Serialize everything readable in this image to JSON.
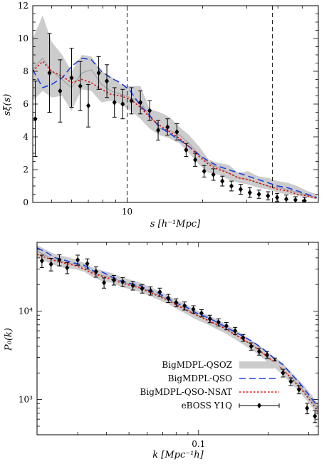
{
  "chart_data": [
    {
      "type": "line",
      "xlabel": "s [h⁻¹Mpc]",
      "ylabel": "sξ(s)",
      "xscale": "log",
      "xlim": [
        4.2,
        58
      ],
      "ylim": [
        0,
        12
      ],
      "xticks": [
        10
      ],
      "yticks": [
        0,
        2,
        4,
        6,
        8,
        10,
        12
      ],
      "vlines": [
        10,
        38
      ],
      "series": [
        {
          "name": "BigMDPL-QSOZ",
          "style": "band",
          "color": "#cccccc",
          "x": [
            4.2,
            4.6,
            5.0,
            5.5,
            6.0,
            6.6,
            7.2,
            7.9,
            8.6,
            9.4,
            10.3,
            11.3,
            12.3,
            13.5,
            14.8,
            16.2,
            17.7,
            19.4,
            21.2,
            23.2,
            25.4,
            27.8,
            30.4,
            33.3,
            36.5,
            39.9,
            43.7,
            47.8,
            52.3,
            57.2
          ],
          "lower": [
            6.2,
            6.8,
            6.4,
            6.5,
            5.6,
            6.9,
            6.8,
            6.1,
            6.2,
            6.0,
            5.6,
            5.1,
            4.5,
            4.1,
            3.9,
            3.6,
            3.0,
            2.3,
            1.8,
            1.7,
            1.4,
            1.2,
            1.1,
            0.9,
            0.8,
            0.6,
            0.5,
            0.4,
            0.3,
            0.2
          ],
          "upper": [
            10.0,
            11.4,
            9.8,
            9.0,
            8.0,
            9.0,
            8.9,
            8.0,
            7.7,
            7.2,
            7.1,
            7.1,
            5.7,
            5.5,
            5.2,
            4.6,
            4.1,
            3.4,
            2.6,
            2.4,
            2.3,
            1.8,
            1.9,
            1.6,
            1.5,
            1.3,
            1.2,
            1.0,
            0.7,
            0.5
          ],
          "mid": [
            8.1,
            8.8,
            8.0,
            7.5,
            7.0,
            7.9,
            8.1,
            7.2,
            6.8,
            6.6,
            6.4,
            6.1,
            5.3,
            4.5,
            4.4,
            4.1,
            3.6,
            2.9,
            2.4,
            2.1,
            1.8,
            1.5,
            1.4,
            1.2,
            1.0,
            0.9,
            0.8,
            0.6,
            0.45,
            0.3
          ]
        },
        {
          "name": "BigMDPL-QSO",
          "style": "dashed",
          "color": "#1f3fe0",
          "x": [
            4.2,
            4.6,
            5.0,
            5.5,
            6.0,
            6.6,
            7.2,
            7.9,
            8.6,
            9.4,
            10.3,
            11.3,
            12.3,
            13.5,
            14.8,
            16.2,
            17.7,
            19.4,
            21.2,
            23.2,
            25.4,
            27.8,
            30.4,
            33.3,
            36.5,
            39.9,
            43.7,
            47.8,
            52.3,
            57.2
          ],
          "y": [
            8.1,
            7.0,
            7.2,
            7.6,
            8.3,
            8.8,
            8.7,
            8.0,
            7.6,
            7.3,
            6.8,
            5.9,
            5.3,
            4.6,
            4.2,
            3.8,
            3.4,
            2.9,
            2.5,
            2.2,
            2.0,
            1.8,
            1.6,
            1.4,
            1.2,
            1.0,
            0.9,
            0.7,
            0.5,
            0.3
          ]
        },
        {
          "name": "BigMDPL-QSO-NSAT",
          "style": "dotted",
          "color": "#e01010",
          "x": [
            4.2,
            4.6,
            5.0,
            5.5,
            6.0,
            6.6,
            7.2,
            7.9,
            8.6,
            9.4,
            10.3,
            11.3,
            12.3,
            13.5,
            14.8,
            16.2,
            17.7,
            19.4,
            21.2,
            23.2,
            25.4,
            27.8,
            30.4,
            33.3,
            36.5,
            39.9,
            43.7,
            47.8,
            52.3,
            57.2
          ],
          "y": [
            8.0,
            8.6,
            8.0,
            7.7,
            7.3,
            7.5,
            7.3,
            6.9,
            6.6,
            6.5,
            6.3,
            5.8,
            5.2,
            4.7,
            4.3,
            3.9,
            3.4,
            2.8,
            2.3,
            2.0,
            1.8,
            1.5,
            1.4,
            1.2,
            1.0,
            0.8,
            0.7,
            0.5,
            0.4,
            0.25
          ]
        },
        {
          "name": "eBOSS Y1Q",
          "style": "points",
          "color": "#000000",
          "x": [
            4.3,
            4.9,
            5.4,
            6.0,
            6.5,
            7.0,
            7.7,
            8.3,
            8.9,
            9.6,
            10.4,
            11.3,
            12.3,
            13.3,
            14.5,
            15.8,
            17.2,
            18.7,
            20.3,
            22.1,
            24.0,
            26.1,
            28.4,
            30.9,
            33.6,
            36.5,
            39.7,
            43.2,
            47.0,
            51.1
          ],
          "y": [
            5.1,
            7.9,
            6.8,
            7.6,
            7.1,
            5.9,
            7.9,
            7.4,
            6.1,
            6.0,
            6.2,
            6.1,
            5.6,
            4.4,
            4.6,
            4.3,
            3.2,
            2.6,
            1.9,
            1.7,
            1.3,
            1.0,
            0.8,
            0.6,
            0.5,
            0.4,
            0.3,
            0.2,
            0.15,
            0.1
          ],
          "err": [
            2.3,
            2.4,
            1.9,
            1.8,
            1.5,
            1.3,
            1.0,
            1.0,
            0.9,
            0.9,
            0.8,
            0.7,
            0.6,
            0.6,
            0.5,
            0.5,
            0.4,
            0.4,
            0.35,
            0.35,
            0.3,
            0.3,
            0.3,
            0.3,
            0.25,
            0.25,
            0.25,
            0.25,
            0.2,
            0.2
          ]
        }
      ]
    },
    {
      "type": "line",
      "xlabel": "k [Mpc⁻¹h]",
      "ylabel": "P₀(k)",
      "xscale": "log",
      "yscale": "log",
      "xlim": [
        0.02,
        0.33
      ],
      "ylim": [
        400,
        60000
      ],
      "xticks": [
        0.1
      ],
      "xtick_labels": [
        "0.1"
      ],
      "yticks": [
        1000,
        10000
      ],
      "ytick_labels": [
        "10³",
        "10⁴"
      ],
      "legend_position": "bottom-left",
      "series": [
        {
          "name": "BigMDPL-QSOZ",
          "style": "band",
          "color": "#cccccc",
          "x": [
            0.02,
            0.022,
            0.024,
            0.026,
            0.029,
            0.032,
            0.035,
            0.038,
            0.042,
            0.046,
            0.051,
            0.056,
            0.061,
            0.067,
            0.074,
            0.081,
            0.089,
            0.098,
            0.108,
            0.119,
            0.131,
            0.144,
            0.158,
            0.174,
            0.191,
            0.21,
            0.231,
            0.254,
            0.279,
            0.307,
            0.33
          ],
          "lower": [
            41000,
            36000,
            33000,
            31000,
            30000,
            28000,
            24000,
            22000,
            21000,
            19000,
            17500,
            16500,
            15000,
            13500,
            12000,
            10500,
            9200,
            8000,
            7200,
            6300,
            5600,
            4800,
            4100,
            3500,
            2900,
            2400,
            1900,
            1500,
            1150,
            850,
            650
          ],
          "upper": [
            56000,
            49000,
            44000,
            42000,
            39000,
            35000,
            31000,
            29000,
            27000,
            24500,
            22500,
            21000,
            19000,
            17000,
            15000,
            13200,
            11800,
            10200,
            9200,
            8200,
            7200,
            6200,
            5300,
            4500,
            3800,
            3100,
            2600,
            2000,
            1550,
            1150,
            900
          ],
          "mid": [
            48000,
            42000,
            38000,
            36000,
            34000,
            31500,
            27500,
            25500,
            24000,
            21800,
            20000,
            18800,
            17000,
            15200,
            13500,
            11800,
            10500,
            9100,
            8200,
            7200,
            6400,
            5500,
            4700,
            4000,
            3300,
            2700,
            2200,
            1750,
            1350,
            1000,
            780
          ]
        },
        {
          "name": "BigMDPL-QSO",
          "style": "dashed",
          "color": "#1f3fe0",
          "x": [
            0.02,
            0.022,
            0.024,
            0.026,
            0.029,
            0.032,
            0.035,
            0.038,
            0.042,
            0.046,
            0.051,
            0.056,
            0.061,
            0.067,
            0.074,
            0.081,
            0.089,
            0.098,
            0.108,
            0.119,
            0.131,
            0.144,
            0.158,
            0.174,
            0.191,
            0.21,
            0.231,
            0.254,
            0.279,
            0.307,
            0.33
          ],
          "y": [
            52000,
            46000,
            40000,
            38000,
            35000,
            33000,
            28500,
            28000,
            24500,
            22000,
            20500,
            19500,
            17000,
            16000,
            13800,
            12200,
            11000,
            9500,
            8600,
            7600,
            6600,
            5800,
            5100,
            4400,
            3700,
            3000,
            2500,
            1900,
            1450,
            1050,
            820
          ]
        },
        {
          "name": "BigMDPL-QSO-NSAT",
          "style": "dotted",
          "color": "#e01010",
          "x": [
            0.02,
            0.022,
            0.024,
            0.026,
            0.029,
            0.032,
            0.035,
            0.038,
            0.042,
            0.046,
            0.051,
            0.056,
            0.061,
            0.067,
            0.074,
            0.081,
            0.089,
            0.098,
            0.108,
            0.119,
            0.131,
            0.144,
            0.158,
            0.174,
            0.191,
            0.21,
            0.231,
            0.254,
            0.279,
            0.307,
            0.33
          ],
          "y": [
            44000,
            40000,
            37000,
            35000,
            33000,
            30000,
            26500,
            25000,
            23000,
            21000,
            19500,
            18200,
            16500,
            14800,
            13200,
            11600,
            10200,
            9000,
            8000,
            7100,
            6300,
            5400,
            4700,
            4000,
            3300,
            2700,
            2200,
            1700,
            1300,
            950,
            720
          ]
        },
        {
          "name": "eBOSS Y1Q",
          "style": "points",
          "color": "#000000",
          "x": [
            0.021,
            0.023,
            0.025,
            0.027,
            0.03,
            0.033,
            0.036,
            0.039,
            0.043,
            0.047,
            0.052,
            0.057,
            0.062,
            0.068,
            0.074,
            0.08,
            0.087,
            0.095,
            0.103,
            0.112,
            0.122,
            0.132,
            0.144,
            0.156,
            0.169,
            0.183,
            0.198,
            0.214,
            0.232,
            0.251,
            0.272,
            0.295,
            0.319
          ],
          "y": [
            37000,
            34000,
            38000,
            31000,
            38000,
            34500,
            28000,
            21000,
            22500,
            21500,
            19500,
            18000,
            17000,
            16500,
            14000,
            12500,
            11500,
            10500,
            9500,
            8200,
            7500,
            6800,
            6000,
            5000,
            4000,
            3500,
            3200,
            2700,
            2000,
            1600,
            1300,
            800,
            650
          ],
          "err": [
            6000,
            5500,
            5500,
            4500,
            5000,
            4500,
            3800,
            2800,
            2800,
            2500,
            2200,
            2000,
            1800,
            1700,
            1500,
            1300,
            1200,
            1000,
            900,
            800,
            700,
            650,
            550,
            450,
            380,
            320,
            300,
            250,
            200,
            160,
            140,
            110,
            100
          ]
        }
      ]
    }
  ],
  "legend": [
    {
      "label": "BigMDPL-QSOZ",
      "style": "band"
    },
    {
      "label": "BigMDPL-QSO",
      "style": "dashed"
    },
    {
      "label": "BigMDPL-QSO-NSAT",
      "style": "dotted"
    },
    {
      "label": "eBOSS Y1Q",
      "style": "points"
    }
  ],
  "colors": {
    "band": "#cccccc",
    "qso": "#1f3fe0",
    "nsat": "#e01010",
    "data": "#000000"
  }
}
